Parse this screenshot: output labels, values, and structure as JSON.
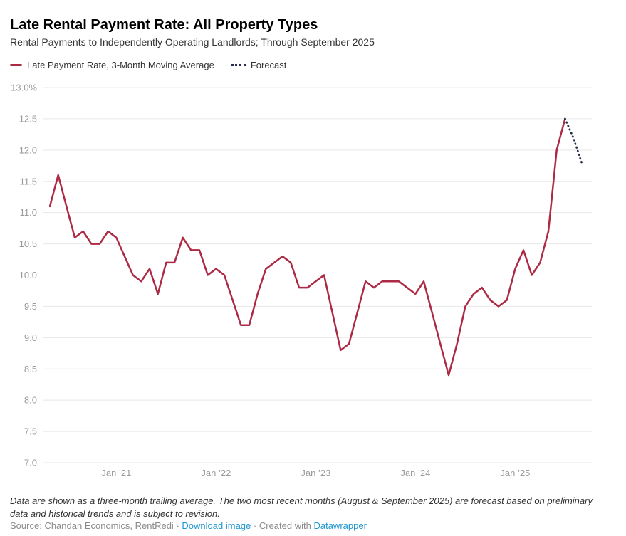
{
  "header": {
    "title": "Late Rental Payment Rate: All Property Types",
    "subtitle": "Rental Payments to Independently Operating Landlords; Through September 2025"
  },
  "legend": {
    "items": [
      {
        "label": "Late Payment Rate, 3-Month Moving Average",
        "swatch": "solid-line",
        "color": "#ad2a44"
      },
      {
        "label": "Forecast",
        "swatch": "dotted-line",
        "color": "#252e4a"
      }
    ]
  },
  "chart_data": {
    "type": "line",
    "title": "Late Rental Payment Rate: All Property Types",
    "xlabel": "",
    "ylabel": "",
    "ylim": [
      7.0,
      13.0
    ],
    "grid": "horizontal",
    "legend_position": "top",
    "x_start": "2020-05",
    "x_step_months": 1,
    "series_name": "Late Payment Rate, 3-Month Moving Average",
    "series_color": "#ad2a44",
    "forecast_name": "Forecast",
    "forecast_color": "#252e4a",
    "forecast_start_index": 62,
    "values": [
      11.1,
      11.6,
      11.1,
      10.6,
      10.7,
      10.5,
      10.5,
      10.7,
      10.6,
      10.3,
      10.0,
      9.9,
      10.1,
      9.7,
      10.2,
      10.2,
      10.6,
      10.4,
      10.4,
      10.0,
      10.1,
      10.0,
      9.6,
      9.2,
      9.2,
      9.7,
      10.1,
      10.2,
      10.3,
      10.2,
      9.8,
      9.8,
      9.9,
      10.0,
      9.4,
      8.8,
      8.9,
      9.4,
      9.9,
      9.8,
      9.9,
      9.9,
      9.9,
      9.8,
      9.7,
      9.9,
      9.4,
      8.9,
      8.4,
      8.9,
      9.5,
      9.7,
      9.8,
      9.6,
      9.5,
      9.6,
      10.1,
      10.4,
      10.0,
      10.2,
      10.7,
      12.0,
      12.5,
      12.2,
      11.8
    ],
    "y_ticks": [
      {
        "value": 13.0,
        "label": "13.0%"
      },
      {
        "value": 12.5,
        "label": "12.5"
      },
      {
        "value": 12.0,
        "label": "12.0"
      },
      {
        "value": 11.5,
        "label": "11.5"
      },
      {
        "value": 11.0,
        "label": "11.0"
      },
      {
        "value": 10.5,
        "label": "10.5"
      },
      {
        "value": 10.0,
        "label": "10.0"
      },
      {
        "value": 9.5,
        "label": "9.5"
      },
      {
        "value": 9.0,
        "label": "9.0"
      },
      {
        "value": 8.5,
        "label": "8.5"
      },
      {
        "value": 8.0,
        "label": "8.0"
      },
      {
        "value": 7.5,
        "label": "7.5"
      },
      {
        "value": 7.0,
        "label": "7.0"
      }
    ],
    "x_ticks": [
      {
        "index": 8,
        "label": "Jan ’21"
      },
      {
        "index": 20,
        "label": "Jan ’22"
      },
      {
        "index": 32,
        "label": "Jan ’23"
      },
      {
        "index": 44,
        "label": "Jan ’24"
      },
      {
        "index": 56,
        "label": "Jan ’25"
      }
    ]
  },
  "footer": {
    "note": "Data are shown as a three-month trailing average. The two most recent months (August & September 2025) are forecast based on preliminary data and historical trends and is subject to revision.",
    "source_label": "Source:",
    "source_text": "Chandan Economics, RentRedi",
    "separator": "·",
    "download_link": "Download image",
    "created_with": "Created with",
    "datawrapper_link": "Datawrapper"
  },
  "colors": {
    "line_red": "#ad2a44",
    "forecast_navy": "#252e4a",
    "gridline": "#e8e8e8",
    "tick_text": "#9b9b9b",
    "link_blue": "#1e96d2"
  }
}
